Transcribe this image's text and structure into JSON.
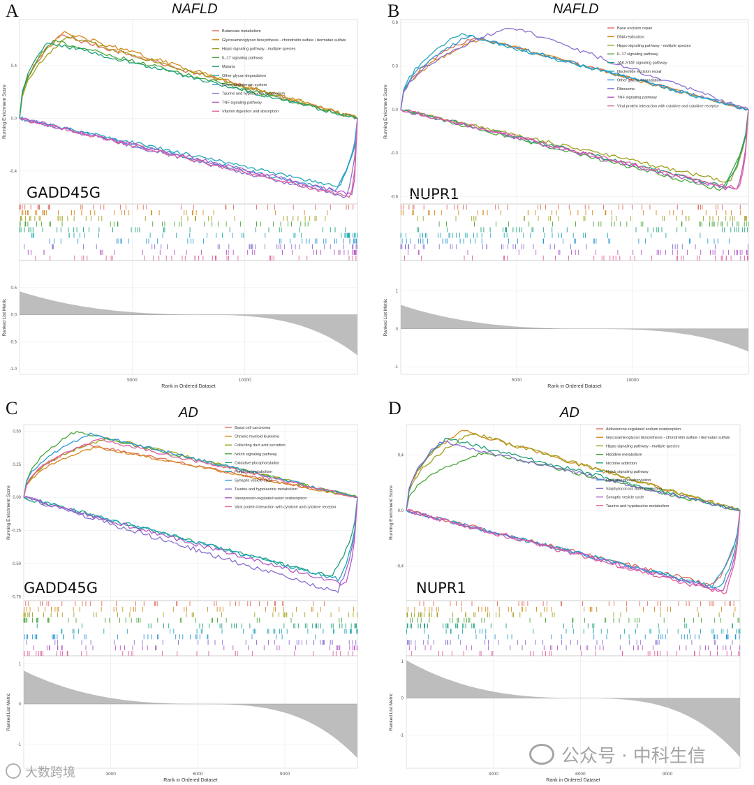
{
  "chart_data": [
    {
      "type": "line",
      "panel_label": "A",
      "title": "NAFLD",
      "gene": "GADD45G",
      "ylabel": "Running Enrichment Score",
      "metric_ylabel": "Ranked List Metric",
      "xlabel": "Rank in Ordered Dataset",
      "es_ylim": [
        -0.65,
        0.75
      ],
      "es_ticks": [
        -0.4,
        0.0,
        0.4
      ],
      "es_tick_labels": [
        "-0.4",
        "0.0",
        "0.4"
      ],
      "metric_ylim": [
        -1.1,
        1.0
      ],
      "metric_ticks": [
        -1.0,
        -0.5,
        0.0,
        0.5
      ],
      "metric_tick_labels": [
        "-1.0",
        "-0.5",
        "0.0",
        "0.5"
      ],
      "x_max": 15000,
      "x_ticks": [
        5000,
        10000
      ],
      "x_tick_labels": [
        "5000",
        "10000"
      ],
      "metric_start": 0.35,
      "metric_end": -0.75,
      "series": [
        {
          "name": "Butanoate metabolism",
          "color": "#e06b5a",
          "direction": "up",
          "peak_rank": 1800,
          "es": 0.63
        },
        {
          "name": "Glycosaminoglycan biosynthesis - chondroitin sulfate / dermatan sulfate",
          "color": "#d6891d",
          "direction": "up",
          "peak_rank": 2000,
          "es": 0.65
        },
        {
          "name": "Hippo signaling pathway - multiple species",
          "color": "#9f9f1c",
          "direction": "up",
          "peak_rank": 2200,
          "es": 0.62
        },
        {
          "name": "IL-17 signaling pathway",
          "color": "#4aa63a",
          "direction": "up",
          "peak_rank": 1500,
          "es": 0.59
        },
        {
          "name": "Malaria",
          "color": "#1ea07a",
          "direction": "up",
          "peak_rank": 1300,
          "es": 0.58
        },
        {
          "name": "Other glycan degradation",
          "color": "#20a7b7",
          "direction": "down",
          "peak_rank": 14200,
          "es": -0.52
        },
        {
          "name": "Renin-angiotensin system",
          "color": "#2f98d6",
          "direction": "down",
          "peak_rank": 14000,
          "es": -0.55
        },
        {
          "name": "Taurine and hypotaurine metabolism",
          "color": "#8a6fcf",
          "direction": "down",
          "peak_rank": 14500,
          "es": -0.6
        },
        {
          "name": "TNF signaling pathway",
          "color": "#b357c9",
          "direction": "down",
          "peak_rank": 14800,
          "es": -0.58
        },
        {
          "name": "Vitamin digestion and absorption",
          "color": "#e0609e",
          "direction": "down",
          "peak_rank": 14700,
          "es": -0.6
        }
      ]
    },
    {
      "type": "line",
      "panel_label": "B",
      "title": "NAFLD",
      "gene": "NUPR1",
      "ylabel": "Running Enrichment Score",
      "metric_ylabel": "Ranked List Metric",
      "xlabel": "Rank in Ordered Dataset",
      "es_ylim": [
        -0.65,
        0.62
      ],
      "es_ticks": [
        -0.6,
        -0.3,
        0.0,
        0.3,
        0.6
      ],
      "es_tick_labels": [
        "-0.6",
        "-0.3",
        "0.0",
        "0.3",
        "0.6"
      ],
      "metric_ylim": [
        -1.2,
        1.8
      ],
      "metric_ticks": [
        -1,
        0,
        1
      ],
      "metric_tick_labels": [
        "-1",
        "0",
        "1"
      ],
      "x_max": 15000,
      "x_ticks": [
        5000,
        10000
      ],
      "x_tick_labels": [
        "5000",
        "10000"
      ],
      "metric_start": 0.55,
      "metric_end": -0.6,
      "series": [
        {
          "name": "Base excision repair",
          "color": "#e06b5a",
          "direction": "up",
          "peak_rank": 3200,
          "es": 0.5
        },
        {
          "name": "DNA replication",
          "color": "#d6891d",
          "direction": "up",
          "peak_rank": 3500,
          "es": 0.49
        },
        {
          "name": "Hippo signaling pathway - multiple species",
          "color": "#9f9f1c",
          "direction": "down",
          "peak_rank": 14200,
          "es": -0.5
        },
        {
          "name": "IL-17 signaling pathway",
          "color": "#4aa63a",
          "direction": "down",
          "peak_rank": 13800,
          "es": -0.55
        },
        {
          "name": "JAK-STAT signaling pathway",
          "color": "#1ea07a",
          "direction": "down",
          "peak_rank": 14000,
          "es": -0.53
        },
        {
          "name": "Nucleotide excision repair",
          "color": "#20a7b7",
          "direction": "up",
          "peak_rank": 2600,
          "es": 0.52
        },
        {
          "name": "Other glycan degradation",
          "color": "#2f98d6",
          "direction": "up",
          "peak_rank": 3000,
          "es": 0.51
        },
        {
          "name": "Ribosome",
          "color": "#8a6fcf",
          "direction": "up",
          "peak_rank": 4800,
          "es": 0.57
        },
        {
          "name": "TNF signaling pathway",
          "color": "#b357c9",
          "direction": "down",
          "peak_rank": 14500,
          "es": -0.56
        },
        {
          "name": "Viral protein interaction with cytokine and cytokine receptor",
          "color": "#e0609e",
          "direction": "down",
          "peak_rank": 14600,
          "es": -0.55
        }
      ]
    },
    {
      "type": "line",
      "panel_label": "C",
      "title": "AD",
      "gene": "GADD45G",
      "ylabel": "Running Enrichment Score",
      "metric_ylabel": "Ranked List Metric",
      "xlabel": "Rank in Ordered Dataset",
      "es_ylim": [
        -0.78,
        0.55
      ],
      "es_ticks": [
        -0.75,
        -0.5,
        -0.25,
        0.0,
        0.25,
        0.5
      ],
      "es_tick_labels": [
        "-0.75",
        "-0.50",
        "-0.25",
        "0.00",
        "0.25",
        "0.50"
      ],
      "metric_ylim": [
        -1.6,
        1.2
      ],
      "metric_ticks": [
        -1,
        0,
        1
      ],
      "metric_tick_labels": [
        "-1",
        "0",
        "1"
      ],
      "x_max": 11500,
      "x_ticks": [
        3000,
        6000,
        9000
      ],
      "x_tick_labels": [
        "3000",
        "6000",
        "9000"
      ],
      "metric_start": 0.75,
      "metric_end": -1.35,
      "series": [
        {
          "name": "Basal cell carcinoma",
          "color": "#e06b5a",
          "direction": "up",
          "peak_rank": 2200,
          "es": 0.4
        },
        {
          "name": "Chronic myeloid leukemia",
          "color": "#d6891d",
          "direction": "up",
          "peak_rank": 2500,
          "es": 0.38
        },
        {
          "name": "Collecting duct acid secretion",
          "color": "#9f9f1c",
          "direction": "up",
          "peak_rank": 2900,
          "es": 0.45
        },
        {
          "name": "Notch signaling pathway",
          "color": "#4aa63a",
          "direction": "up",
          "peak_rank": 1800,
          "es": 0.5
        },
        {
          "name": "Oxidative phosphorylation",
          "color": "#1ea07a",
          "direction": "down",
          "peak_rank": 10600,
          "es": -0.6
        },
        {
          "name": "Porphyrin metabolism",
          "color": "#20a7b7",
          "direction": "down",
          "peak_rank": 10900,
          "es": -0.62
        },
        {
          "name": "Synaptic vesicle cycle",
          "color": "#2f98d6",
          "direction": "up",
          "peak_rank": 2300,
          "es": 0.48
        },
        {
          "name": "Taurine and hypotaurine metabolism",
          "color": "#8a6fcf",
          "direction": "down",
          "peak_rank": 10800,
          "es": -0.72
        },
        {
          "name": "Vasopressin-regulated water reabsorption",
          "color": "#b357c9",
          "direction": "down",
          "peak_rank": 11100,
          "es": -0.66
        },
        {
          "name": "Viral protein interaction with cytokine and cytokine receptor",
          "color": "#e0609e",
          "direction": "up",
          "peak_rank": 2600,
          "es": 0.44
        }
      ]
    },
    {
      "type": "line",
      "panel_label": "D",
      "title": "AD",
      "gene": "NUPR1",
      "ylabel": "Running Enrichment Score",
      "metric_ylabel": "Ranked List Metric",
      "xlabel": "Rank in Ordered Dataset",
      "es_ylim": [
        -0.65,
        0.62
      ],
      "es_ticks": [
        -0.4,
        0.0,
        0.4
      ],
      "es_tick_labels": [
        "-0.4",
        "0.0",
        "0.4"
      ],
      "metric_ylim": [
        -1.9,
        1.15
      ],
      "metric_ticks": [
        -1,
        0,
        1
      ],
      "metric_tick_labels": [
        "-1",
        "0",
        "1"
      ],
      "x_max": 11500,
      "x_ticks": [
        3000,
        6000,
        9000
      ],
      "x_tick_labels": [
        "3000",
        "6000",
        "9000"
      ],
      "metric_start": 0.95,
      "metric_end": -1.6,
      "series": [
        {
          "name": "Aldosterone-regulated sodium reabsorption",
          "color": "#e06b5a",
          "direction": "down",
          "peak_rank": 10600,
          "es": -0.54
        },
        {
          "name": "Glycosaminoglycan biosynthesis - chondroitin sulfate / dermatan sulfate",
          "color": "#d6891d",
          "direction": "up",
          "peak_rank": 1900,
          "es": 0.58
        },
        {
          "name": "Hippo signaling pathway - multiple species",
          "color": "#9f9f1c",
          "direction": "up",
          "peak_rank": 2300,
          "es": 0.56
        },
        {
          "name": "Histidine metabolism",
          "color": "#4aa63a",
          "direction": "up",
          "peak_rank": 2700,
          "es": 0.42
        },
        {
          "name": "Nicotine addiction",
          "color": "#1ea07a",
          "direction": "up",
          "peak_rank": 1400,
          "es": 0.52
        },
        {
          "name": "Notch signaling pathway",
          "color": "#20a7b7",
          "direction": "down",
          "peak_rank": 10800,
          "es": -0.56
        },
        {
          "name": "Oxidative phosphorylation",
          "color": "#2f98d6",
          "direction": "down",
          "peak_rank": 10500,
          "es": -0.55
        },
        {
          "name": "Staphylococcus aureus infection",
          "color": "#8a6fcf",
          "direction": "up",
          "peak_rank": 1200,
          "es": 0.5
        },
        {
          "name": "Synaptic vesicle cycle",
          "color": "#b357c9",
          "direction": "down",
          "peak_rank": 10900,
          "es": -0.58
        },
        {
          "name": "Taurine and hypotaurine metabolism",
          "color": "#e0609e",
          "direction": "down",
          "peak_rank": 11000,
          "es": -0.6
        }
      ]
    }
  ],
  "watermark": {
    "left_text": "大数跨境",
    "right_text": "公众号 · 中科生信"
  }
}
